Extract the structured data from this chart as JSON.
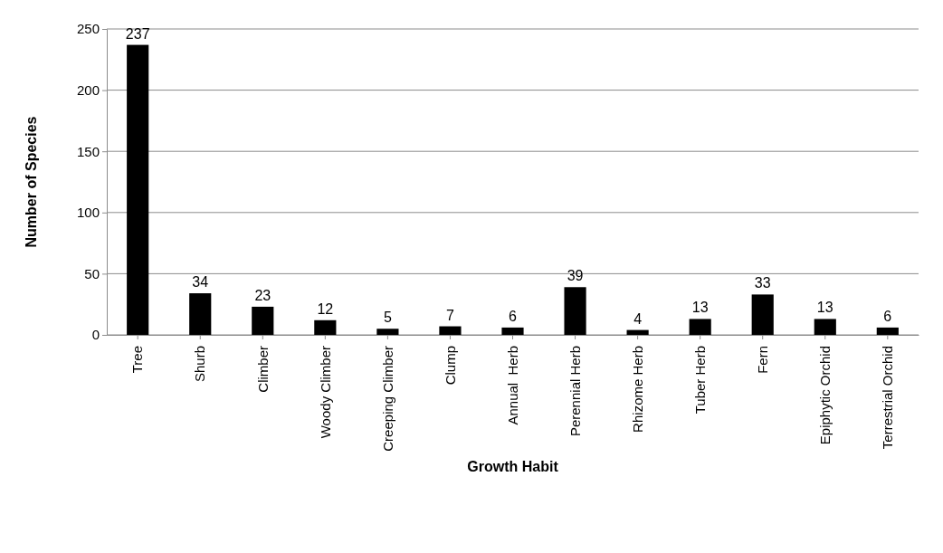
{
  "chart_data": {
    "type": "bar",
    "xlabel": "Growth Habit",
    "ylabel": "Number of Species",
    "categories": [
      "Tree",
      "Shurb",
      "Climber",
      "Woody Climber",
      "Creeping Climber",
      "Clump",
      "Annual  Herb",
      "Perennial Herb",
      "Rhizome Herb",
      "Tuber Herb",
      "Fern",
      "Epiphytic Orchid",
      "Terrestrial Orchid"
    ],
    "values": [
      237,
      34,
      23,
      12,
      5,
      7,
      6,
      39,
      4,
      13,
      33,
      13,
      6
    ],
    "color": "#000000",
    "ylim": [
      0,
      250
    ],
    "yticks": [
      0,
      50,
      100,
      150,
      200,
      250
    ],
    "grid": "y",
    "data_labels": true
  }
}
